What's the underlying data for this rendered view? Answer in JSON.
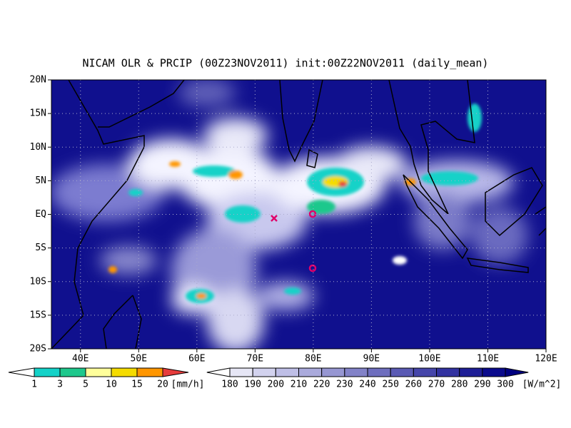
{
  "title": "NICAM OLR & PRCIP (00Z23NOV2011) init:00Z22NOV2011 (daily_mean)",
  "map": {
    "lat_labels": [
      "20N",
      "15N",
      "10N",
      "5N",
      "EQ",
      "5S",
      "10S",
      "15S",
      "20S"
    ],
    "lon_labels": [
      "40E",
      "50E",
      "60E",
      "70E",
      "80E",
      "90E",
      "100E",
      "110E",
      "120E"
    ]
  },
  "precip_colorbar": {
    "labels": [
      1,
      3,
      5,
      10,
      15,
      20
    ],
    "unit": "[mm/h]",
    "colors": [
      "#ffffff",
      "#14d2c8",
      "#1ec88c",
      "#ffff9b",
      "#f5dc00",
      "#ff9600",
      "#e63c3c"
    ]
  },
  "olr_colorbar": {
    "labels": [
      180,
      190,
      200,
      210,
      220,
      230,
      240,
      250,
      260,
      270,
      280,
      290,
      300
    ],
    "unit": "[W/m^2]",
    "colors": [
      "#ffffff",
      "#e6e6f5",
      "#d2d2ee",
      "#bebee6",
      "#aaaadc",
      "#9696d2",
      "#8282c8",
      "#6e6ebe",
      "#5a5ab4",
      "#4646aa",
      "#3232a0",
      "#1e1e96",
      "#0a0a8c",
      "#000080"
    ]
  }
}
